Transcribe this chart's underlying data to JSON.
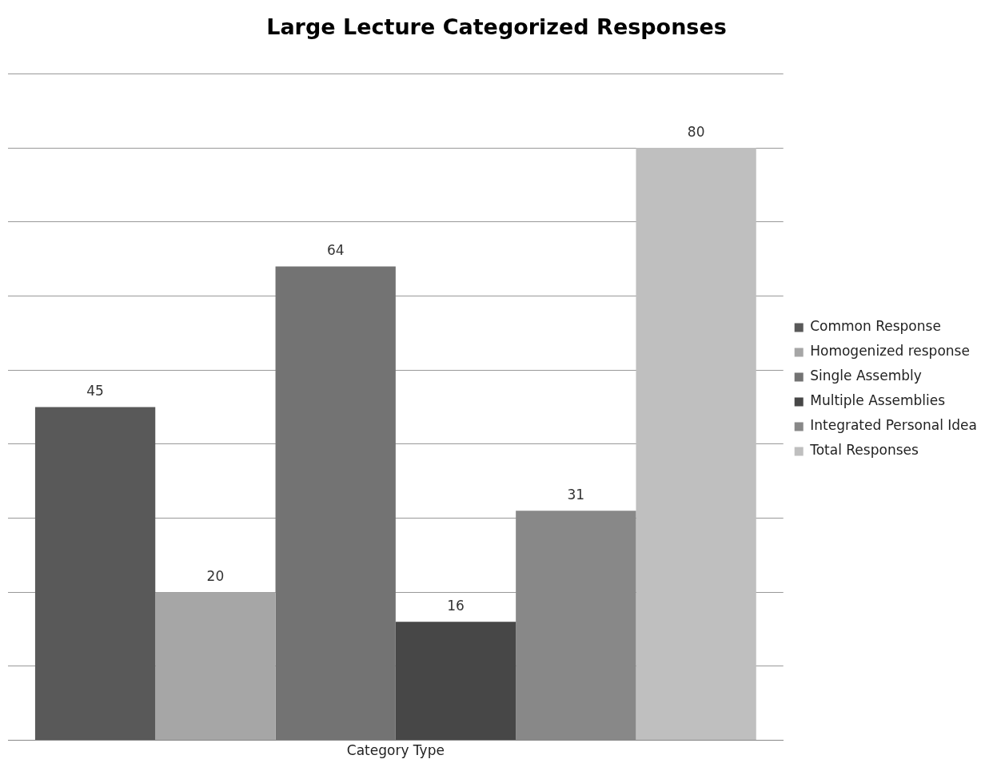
{
  "chart_data": {
    "type": "bar",
    "title": "Large Lecture Categorized Responses",
    "categories": [
      null
    ],
    "xlabel": "Category Type",
    "series": [
      {
        "name": "Common Response",
        "color": "#595959",
        "values": [
          45
        ]
      },
      {
        "name": "Homogenized response",
        "color": "#a6a6a6",
        "values": [
          20
        ]
      },
      {
        "name": "Single Assembly",
        "color": "#737373",
        "values": [
          64
        ]
      },
      {
        "name": "Multiple Assemblies",
        "color": "#474747",
        "values": [
          16
        ]
      },
      {
        "name": "Integrated Personal Idea",
        "color": "#888888",
        "values": [
          31
        ]
      },
      {
        "name": "Total Responses",
        "color": "#bfbfbf",
        "values": [
          80
        ]
      }
    ],
    "ylim": [
      0,
      90
    ],
    "yticks": [
      {
        "value": 0,
        "label": null
      },
      {
        "value": 10,
        "label": null
      },
      {
        "value": 20,
        "label": null
      },
      {
        "value": 30,
        "label": null
      },
      {
        "value": 40,
        "label": null
      },
      {
        "value": 50,
        "label": null
      },
      {
        "value": 60,
        "label": null
      },
      {
        "value": 70,
        "label": null
      },
      {
        "value": 80,
        "label": null
      },
      {
        "value": 90,
        "label": null
      }
    ],
    "tick_labels": false,
    "grid": "y",
    "legend": "right",
    "data_labels": true
  }
}
